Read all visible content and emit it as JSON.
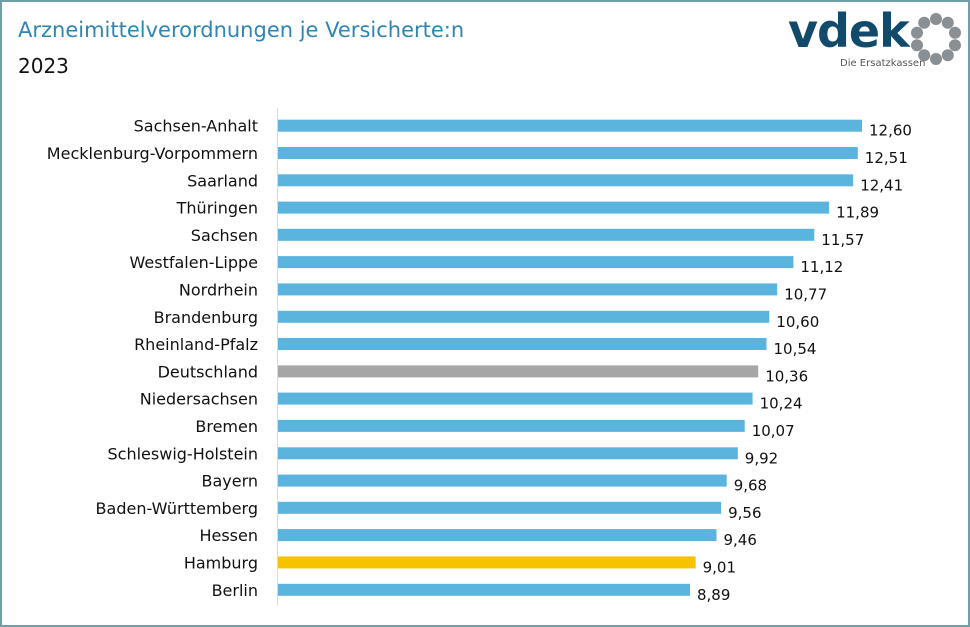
{
  "chart_data": {
    "type": "bar",
    "orientation": "horizontal",
    "title": "Arzneimittelverordnungen je Versicherte:n",
    "subtitle": "2023",
    "categories": [
      "Sachsen-Anhalt",
      "Mecklenburg-Vorpommern",
      "Saarland",
      "Thüringen",
      "Sachsen",
      "Westfalen-Lippe",
      "Nordrhein",
      "Brandenburg",
      "Rheinland-Pfalz",
      "Deutschland",
      "Niedersachsen",
      "Bremen",
      "Schleswig-Holstein",
      "Bayern",
      "Baden-Württemberg",
      "Hessen",
      "Hamburg",
      "Berlin"
    ],
    "values": [
      12.6,
      12.51,
      12.41,
      11.89,
      11.57,
      11.12,
      10.77,
      10.6,
      10.54,
      10.36,
      10.24,
      10.07,
      9.92,
      9.68,
      9.56,
      9.46,
      9.01,
      8.89
    ],
    "value_labels": [
      "12,60",
      "12,51",
      "12,41",
      "11,89",
      "11,57",
      "11,12",
      "10,77",
      "10,60",
      "10,54",
      "10,36",
      "10,24",
      "10,07",
      "9,92",
      "9,68",
      "9,56",
      "9,46",
      "9,01",
      "8,89"
    ],
    "highlight": {
      "Deutschland": "#a6a6a6",
      "Hamburg": "#f7c200"
    },
    "bar_color": "#5ab4de",
    "xlim": [
      0,
      12.6
    ],
    "grid": false,
    "legend": "none"
  },
  "colors": {
    "title": "#2e86b4",
    "logo": "#124a6b",
    "frame": "#6f9fa8"
  },
  "logo": {
    "word": "vdek",
    "tagline": "Die Ersatzkassen"
  }
}
